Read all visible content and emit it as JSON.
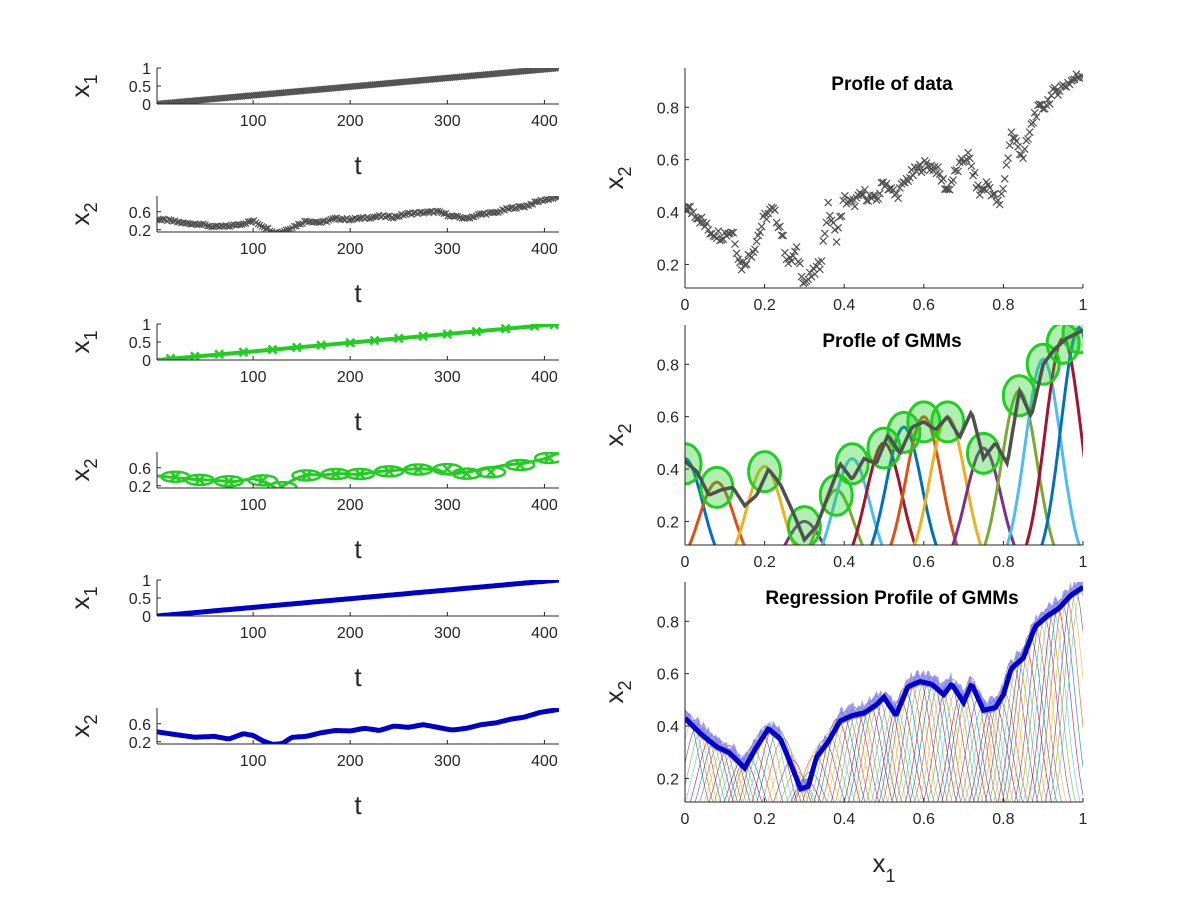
{
  "chart_data": [
    {
      "id": "p1",
      "type": "scatter",
      "ylabel": "x",
      "ylabel_sub": "1",
      "xlabel": "t",
      "xlim": [
        1,
        415
      ],
      "ylim": [
        0,
        1
      ],
      "xticks": [
        100,
        200,
        300,
        400
      ],
      "yticks": [
        0,
        0.5,
        1
      ],
      "color": "#505050",
      "marker": "x",
      "x": [
        1,
        415
      ],
      "y": [
        0,
        1
      ]
    },
    {
      "id": "p2",
      "type": "scatter",
      "ylabel": "x",
      "ylabel_sub": "2",
      "xlabel": "t",
      "xlim": [
        1,
        415
      ],
      "ylim": [
        0.15,
        0.95
      ],
      "xticks": [
        100,
        200,
        300,
        400
      ],
      "yticks": [
        0.2,
        0.6
      ],
      "color": "#505050",
      "marker": "x",
      "x": [
        1,
        15,
        30,
        45,
        60,
        75,
        90,
        100,
        110,
        125,
        140,
        155,
        170,
        185,
        200,
        215,
        230,
        245,
        260,
        275,
        290,
        305,
        320,
        335,
        350,
        365,
        380,
        395,
        415
      ],
      "y": [
        0.43,
        0.4,
        0.34,
        0.33,
        0.26,
        0.28,
        0.34,
        0.4,
        0.28,
        0.12,
        0.25,
        0.4,
        0.36,
        0.45,
        0.43,
        0.46,
        0.5,
        0.48,
        0.56,
        0.58,
        0.6,
        0.5,
        0.45,
        0.55,
        0.58,
        0.68,
        0.72,
        0.84,
        0.93
      ]
    },
    {
      "id": "p3",
      "type": "line",
      "ylabel": "x",
      "ylabel_sub": "1",
      "xlabel": "t",
      "xlim": [
        1,
        415
      ],
      "ylim": [
        0,
        1
      ],
      "xticks": [
        100,
        200,
        300,
        400
      ],
      "yticks": [
        0,
        0.5,
        1
      ],
      "color": "#1fce1f",
      "marker": "x",
      "x": [
        1,
        415
      ],
      "y": [
        0,
        1
      ],
      "centers_x": [
        15,
        40,
        65,
        90,
        120,
        145,
        170,
        200,
        225,
        250,
        275,
        300,
        330,
        360,
        390,
        410
      ],
      "centers_y": [
        0.04,
        0.1,
        0.16,
        0.22,
        0.29,
        0.35,
        0.41,
        0.48,
        0.54,
        0.6,
        0.66,
        0.72,
        0.79,
        0.87,
        0.94,
        0.98
      ]
    },
    {
      "id": "p4",
      "type": "line",
      "ylabel": "x",
      "ylabel_sub": "2",
      "xlabel": "t",
      "xlim": [
        1,
        415
      ],
      "ylim": [
        0.15,
        0.95
      ],
      "xticks": [
        100,
        200,
        300,
        400
      ],
      "yticks": [
        0.2,
        0.6
      ],
      "color": "#1fce1f",
      "marker": "x",
      "x": [
        1,
        20,
        40,
        60,
        80,
        100,
        115,
        125,
        140,
        155,
        170,
        190,
        210,
        230,
        250,
        270,
        290,
        300,
        320,
        340,
        360,
        380,
        400,
        415
      ],
      "y": [
        0.42,
        0.38,
        0.34,
        0.32,
        0.29,
        0.36,
        0.26,
        0.12,
        0.32,
        0.45,
        0.44,
        0.47,
        0.45,
        0.52,
        0.55,
        0.58,
        0.56,
        0.45,
        0.5,
        0.58,
        0.66,
        0.7,
        0.8,
        0.93
      ],
      "centers_x": [
        20,
        45,
        75,
        110,
        130,
        155,
        185,
        210,
        240,
        270,
        300,
        320,
        345,
        375,
        405
      ],
      "centers_y": [
        0.4,
        0.33,
        0.3,
        0.32,
        0.17,
        0.43,
        0.46,
        0.46,
        0.52,
        0.56,
        0.57,
        0.47,
        0.5,
        0.66,
        0.82
      ]
    },
    {
      "id": "p5",
      "type": "line",
      "ylabel": "x",
      "ylabel_sub": "1",
      "xlabel": "t",
      "xlim": [
        1,
        415
      ],
      "ylim": [
        0,
        1
      ],
      "xticks": [
        100,
        200,
        300,
        400
      ],
      "yticks": [
        0,
        0.5,
        1
      ],
      "color": "#0000c8",
      "x": [
        1,
        415
      ],
      "y": [
        0,
        1
      ]
    },
    {
      "id": "p6",
      "type": "line",
      "ylabel": "x",
      "ylabel_sub": "2",
      "xlabel": "t",
      "xlim": [
        1,
        415
      ],
      "ylim": [
        0.15,
        0.95
      ],
      "xticks": [
        100,
        200,
        300,
        400
      ],
      "yticks": [
        0.2,
        0.6
      ],
      "color": "#0000c8",
      "x": [
        1,
        20,
        40,
        60,
        75,
        90,
        100,
        110,
        120,
        130,
        140,
        155,
        170,
        185,
        200,
        215,
        230,
        245,
        260,
        275,
        290,
        305,
        320,
        335,
        350,
        365,
        380,
        395,
        415
      ],
      "y": [
        0.42,
        0.36,
        0.3,
        0.32,
        0.26,
        0.38,
        0.34,
        0.22,
        0.14,
        0.16,
        0.3,
        0.32,
        0.4,
        0.45,
        0.44,
        0.5,
        0.45,
        0.55,
        0.52,
        0.58,
        0.52,
        0.46,
        0.5,
        0.58,
        0.62,
        0.7,
        0.75,
        0.85,
        0.92
      ]
    },
    {
      "id": "p7",
      "type": "scatter",
      "title": "Profle of data",
      "ylabel": "x",
      "ylabel_sub": "2",
      "xlabel": "",
      "xlim": [
        0,
        1
      ],
      "ylim": [
        0.11,
        0.95
      ],
      "xticks": [
        0,
        0.2,
        0.4,
        0.6,
        0.8,
        1
      ],
      "yticks": [
        0.2,
        0.4,
        0.6,
        0.8
      ],
      "color": "#505050",
      "marker": "x",
      "x": [
        0,
        0.03,
        0.06,
        0.09,
        0.12,
        0.14,
        0.17,
        0.2,
        0.22,
        0.24,
        0.26,
        0.28,
        0.3,
        0.32,
        0.34,
        0.36,
        0.38,
        0.4,
        0.42,
        0.45,
        0.48,
        0.5,
        0.53,
        0.56,
        0.6,
        0.63,
        0.66,
        0.68,
        0.71,
        0.74,
        0.76,
        0.79,
        0.8,
        0.82,
        0.85,
        0.88,
        0.9,
        0.93,
        0.96,
        1
      ],
      "y": [
        0.42,
        0.39,
        0.33,
        0.31,
        0.33,
        0.19,
        0.25,
        0.38,
        0.41,
        0.34,
        0.2,
        0.25,
        0.13,
        0.16,
        0.2,
        0.42,
        0.3,
        0.45,
        0.43,
        0.47,
        0.44,
        0.52,
        0.46,
        0.53,
        0.58,
        0.57,
        0.48,
        0.55,
        0.62,
        0.47,
        0.51,
        0.42,
        0.5,
        0.7,
        0.61,
        0.78,
        0.8,
        0.86,
        0.89,
        0.93
      ]
    },
    {
      "id": "p8",
      "type": "line",
      "title": "Profle of GMMs",
      "ylabel": "x",
      "ylabel_sub": "2",
      "xlabel": "",
      "xlim": [
        0,
        1
      ],
      "ylim": [
        0.11,
        0.95
      ],
      "xticks": [
        0,
        0.2,
        0.4,
        0.6,
        0.8,
        1
      ],
      "yticks": [
        0.2,
        0.4,
        0.6,
        0.8
      ],
      "color": "#505050",
      "x": [
        0,
        0.03,
        0.06,
        0.09,
        0.12,
        0.15,
        0.18,
        0.21,
        0.24,
        0.27,
        0.3,
        0.33,
        0.36,
        0.39,
        0.42,
        0.45,
        0.48,
        0.51,
        0.54,
        0.57,
        0.6,
        0.63,
        0.66,
        0.69,
        0.72,
        0.75,
        0.78,
        0.81,
        0.84,
        0.87,
        0.9,
        0.93,
        0.96,
        1
      ],
      "y": [
        0.43,
        0.39,
        0.3,
        0.32,
        0.33,
        0.26,
        0.3,
        0.4,
        0.34,
        0.24,
        0.13,
        0.18,
        0.3,
        0.42,
        0.36,
        0.44,
        0.42,
        0.53,
        0.46,
        0.56,
        0.58,
        0.55,
        0.6,
        0.52,
        0.62,
        0.44,
        0.5,
        0.42,
        0.7,
        0.6,
        0.8,
        0.86,
        0.9,
        0.93
      ],
      "centers_x": [
        0,
        0.08,
        0.2,
        0.3,
        0.38,
        0.42,
        0.5,
        0.55,
        0.6,
        0.66,
        0.75,
        0.84,
        0.9,
        0.95,
        0.99
      ],
      "centers_y": [
        0.42,
        0.33,
        0.39,
        0.18,
        0.3,
        0.42,
        0.48,
        0.54,
        0.58,
        0.58,
        0.46,
        0.68,
        0.8,
        0.88,
        0.92
      ],
      "component_colors": [
        "#0072bd",
        "#d95319",
        "#edb120",
        "#7e2f8e",
        "#77ac30",
        "#4dbeee",
        "#a2142f"
      ]
    },
    {
      "id": "p9",
      "type": "line",
      "title": "Regression Profile of GMMs",
      "ylabel": "x",
      "ylabel_sub": "2",
      "xlabel": "x",
      "xlabel_sub": "1",
      "xlim": [
        0,
        1
      ],
      "ylim": [
        0.11,
        0.95
      ],
      "xticks": [
        0,
        0.2,
        0.4,
        0.6,
        0.8,
        1
      ],
      "yticks": [
        0.2,
        0.4,
        0.6,
        0.8
      ],
      "color": "#0000c8",
      "band_color": "#7b7bf0",
      "x": [
        0,
        0.04,
        0.08,
        0.11,
        0.15,
        0.18,
        0.21,
        0.24,
        0.27,
        0.29,
        0.31,
        0.33,
        0.36,
        0.39,
        0.42,
        0.45,
        0.48,
        0.5,
        0.53,
        0.56,
        0.59,
        0.62,
        0.65,
        0.67,
        0.7,
        0.72,
        0.75,
        0.78,
        0.8,
        0.82,
        0.85,
        0.88,
        0.91,
        0.94,
        0.97,
        1
      ],
      "y": [
        0.43,
        0.37,
        0.32,
        0.3,
        0.24,
        0.32,
        0.39,
        0.35,
        0.24,
        0.16,
        0.17,
        0.28,
        0.34,
        0.42,
        0.44,
        0.45,
        0.48,
        0.51,
        0.44,
        0.55,
        0.57,
        0.56,
        0.52,
        0.56,
        0.49,
        0.56,
        0.46,
        0.47,
        0.52,
        0.62,
        0.66,
        0.78,
        0.82,
        0.85,
        0.9,
        0.93
      ]
    }
  ]
}
